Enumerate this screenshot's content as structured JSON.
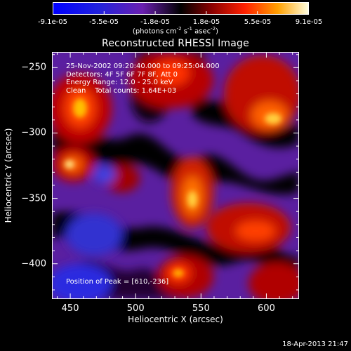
{
  "colorbar": {
    "tick_labels": [
      "-9.1e-05",
      "-5.5e-05",
      "-1.8e-05",
      "1.8e-05",
      "5.5e-05",
      "9.1e-05"
    ],
    "units_main": "(photons cm",
    "units_sup1": "-2",
    "units_mid": " s",
    "units_sup2": "-1",
    "units_end": " asec",
    "units_sup3": "-2",
    "units_close": ")"
  },
  "title": "Reconstructed RHESSI Image",
  "info": {
    "time": "25-Nov-2002 09:20:40.000 to 09:25:04.000",
    "detectors": "Detectors: 4F 5F 6F 7F 8F, Att 0",
    "energy": "Energy Range: 12.0 - 25.0 keV",
    "clean": "Clean    Total counts: 1.64E+03"
  },
  "peak": "Position of Peak = [610,-236]",
  "axes": {
    "xlabel": "Heliocentric X (arcsec)",
    "ylabel": "Heliocentric Y (arcsec)",
    "xticks": [
      "450",
      "500",
      "550",
      "600"
    ],
    "yticks": [
      "-250",
      "-300",
      "-350",
      "-400"
    ],
    "xrange": [
      436,
      625
    ],
    "yrange": [
      -427,
      -238
    ]
  },
  "timestamp": "18-Apr-2013 21:47"
}
